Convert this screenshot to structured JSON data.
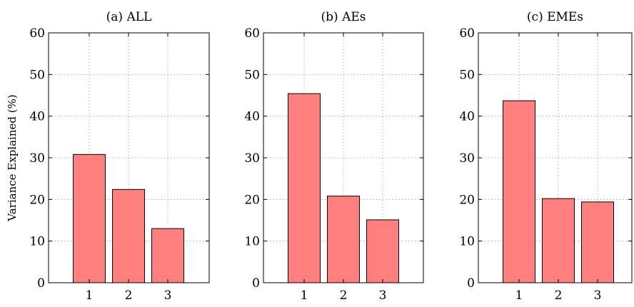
{
  "chart_data": [
    {
      "type": "bar",
      "title": "(a) ALL",
      "ylabel": "Variance Explained (%)",
      "categories": [
        "1",
        "2",
        "3"
      ],
      "values": [
        30.8,
        22.4,
        13.0
      ],
      "ylim": [
        0,
        60
      ],
      "yticks": [
        0,
        10,
        20,
        30,
        40,
        50,
        60
      ],
      "grid": true,
      "bar_color": "#ff7f7f"
    },
    {
      "type": "bar",
      "title": "(b) AEs",
      "ylabel": "",
      "categories": [
        "1",
        "2",
        "3"
      ],
      "values": [
        45.4,
        20.8,
        15.1
      ],
      "ylim": [
        0,
        60
      ],
      "yticks": [
        0,
        10,
        20,
        30,
        40,
        50,
        60
      ],
      "grid": true,
      "bar_color": "#ff7f7f"
    },
    {
      "type": "bar",
      "title": "(c) EMEs",
      "ylabel": "",
      "categories": [
        "1",
        "2",
        "3"
      ],
      "values": [
        43.7,
        20.2,
        19.4
      ],
      "ylim": [
        0,
        60
      ],
      "yticks": [
        0,
        10,
        20,
        30,
        40,
        50,
        60
      ],
      "grid": true,
      "bar_color": "#ff7f7f"
    }
  ]
}
